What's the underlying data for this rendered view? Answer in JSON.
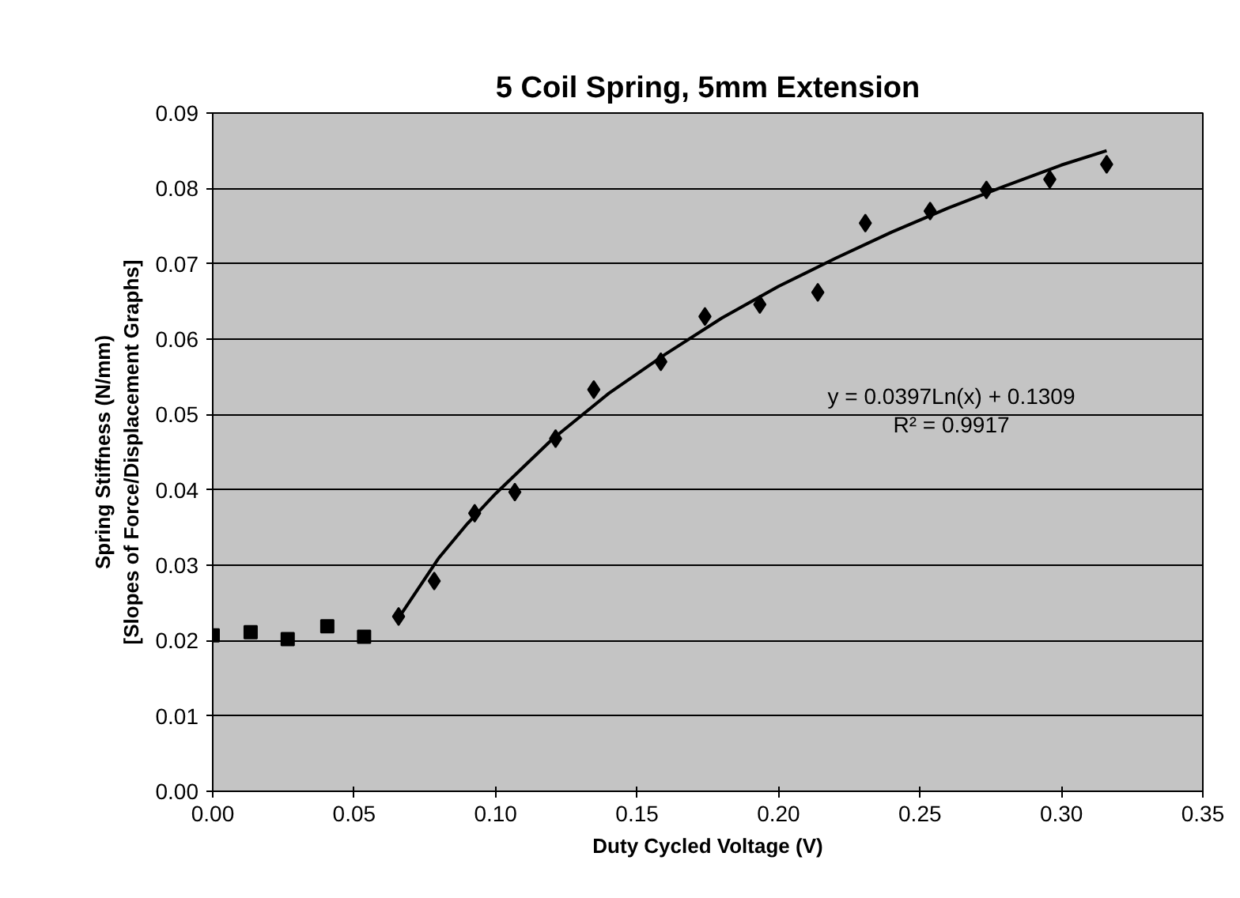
{
  "chart_data": {
    "type": "scatter",
    "title": "5 Coil Spring, 5mm Extension",
    "xlabel": "Duty Cycled Voltage (V)",
    "ylabel": "Spring Stiffness (N/mm)\n[Slopes of Force/Displacement Graphs]",
    "xlim": [
      0,
      0.35
    ],
    "ylim": [
      0,
      0.09
    ],
    "xticks": [
      {
        "value": 0,
        "label": "0.00"
      },
      {
        "value": 0.05,
        "label": "0.05"
      },
      {
        "value": 0.1,
        "label": "0.10"
      },
      {
        "value": 0.15,
        "label": "0.15"
      },
      {
        "value": 0.2,
        "label": "0.20"
      },
      {
        "value": 0.25,
        "label": "0.25"
      },
      {
        "value": 0.3,
        "label": "0.30"
      },
      {
        "value": 0.35,
        "label": "0.35"
      }
    ],
    "yticks": [
      {
        "value": 0,
        "label": "0.00"
      },
      {
        "value": 0.01,
        "label": "0.01"
      },
      {
        "value": 0.02,
        "label": "0.02"
      },
      {
        "value": 0.03,
        "label": "0.03"
      },
      {
        "value": 0.04,
        "label": "0.04"
      },
      {
        "value": 0.05,
        "label": "0.05"
      },
      {
        "value": 0.06,
        "label": "0.06"
      },
      {
        "value": 0.07,
        "label": "0.07"
      },
      {
        "value": 0.08,
        "label": "0.08"
      },
      {
        "value": 0.09,
        "label": "0.09"
      }
    ],
    "grid": "y",
    "series": [
      {
        "type": "scatter",
        "marker": "square",
        "color": "#000000",
        "x": [
          0,
          0.0134,
          0.0265,
          0.0405,
          0.0535
        ],
        "values": [
          0.0207,
          0.0211,
          0.0202,
          0.0219,
          0.0205
        ]
      },
      {
        "type": "scatter",
        "marker": "diamond",
        "color": "#000000",
        "x": [
          0.0657,
          0.0783,
          0.0926,
          0.1068,
          0.1212,
          0.1347,
          0.1584,
          0.174,
          0.1934,
          0.2139,
          0.2307,
          0.2536,
          0.2735,
          0.2959,
          0.316
        ],
        "values": [
          0.0232,
          0.0279,
          0.0369,
          0.0397,
          0.0468,
          0.0533,
          0.057,
          0.063,
          0.0646,
          0.0662,
          0.0754,
          0.077,
          0.0798,
          0.0812,
          0.0832
        ]
      },
      {
        "type": "line",
        "line_style": "solid",
        "color": "#000000",
        "x": [
          0.0657,
          0.08,
          0.09,
          0.1,
          0.12,
          0.14,
          0.16,
          0.18,
          0.2,
          0.22,
          0.24,
          0.26,
          0.28,
          0.3,
          0.316
        ],
        "values": [
          0.023,
          0.031,
          0.0355,
          0.0395,
          0.0467,
          0.0528,
          0.058,
          0.0628,
          0.067,
          0.0707,
          0.0742,
          0.0774,
          0.0803,
          0.0831,
          0.085
        ]
      }
    ],
    "annotations": [
      "y = 0.0397Ln(x) + 0.1309",
      "R² = 0.9917"
    ]
  }
}
